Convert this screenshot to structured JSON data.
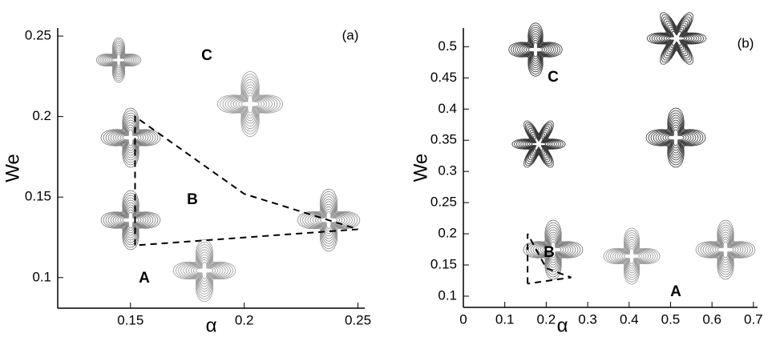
{
  "chart_data": [
    {
      "type": "line",
      "panel_label": "(a)",
      "x_label": "α",
      "y_label": "We",
      "x": [
        0.152,
        0.152,
        0.2,
        0.25,
        0.152
      ],
      "series": [
        {
          "color": "#000000",
          "values": [
            0.12,
            0.2,
            0.152,
            0.13,
            0.12
          ]
        }
      ],
      "xlim": [
        0.118,
        0.253
      ],
      "ylim": [
        0.081,
        0.255
      ],
      "xticks": [
        0.15,
        0.2,
        0.25
      ],
      "yticks": [
        0.1,
        0.15,
        0.2,
        0.25
      ],
      "annotations": [
        "A",
        "B",
        "C"
      ]
    },
    {
      "type": "line",
      "panel_label": "(b)",
      "x_label": "α",
      "y_label": "We",
      "x": [
        0.155,
        0.155,
        0.2,
        0.26,
        0.155
      ],
      "series": [
        {
          "color": "#000000",
          "values": [
            0.12,
            0.2,
            0.145,
            0.13,
            0.12
          ]
        }
      ],
      "xlim": [
        0,
        0.71
      ],
      "ylim": [
        0.082,
        0.53
      ],
      "xticks": [
        0,
        0.1,
        0.2,
        0.3,
        0.4,
        0.5,
        0.6,
        0.7
      ],
      "yticks": [
        0.1,
        0.15,
        0.2,
        0.25,
        0.3,
        0.35,
        0.4,
        0.45,
        0.5
      ],
      "annotations": [
        "A",
        "B",
        "C"
      ]
    }
  ]
}
